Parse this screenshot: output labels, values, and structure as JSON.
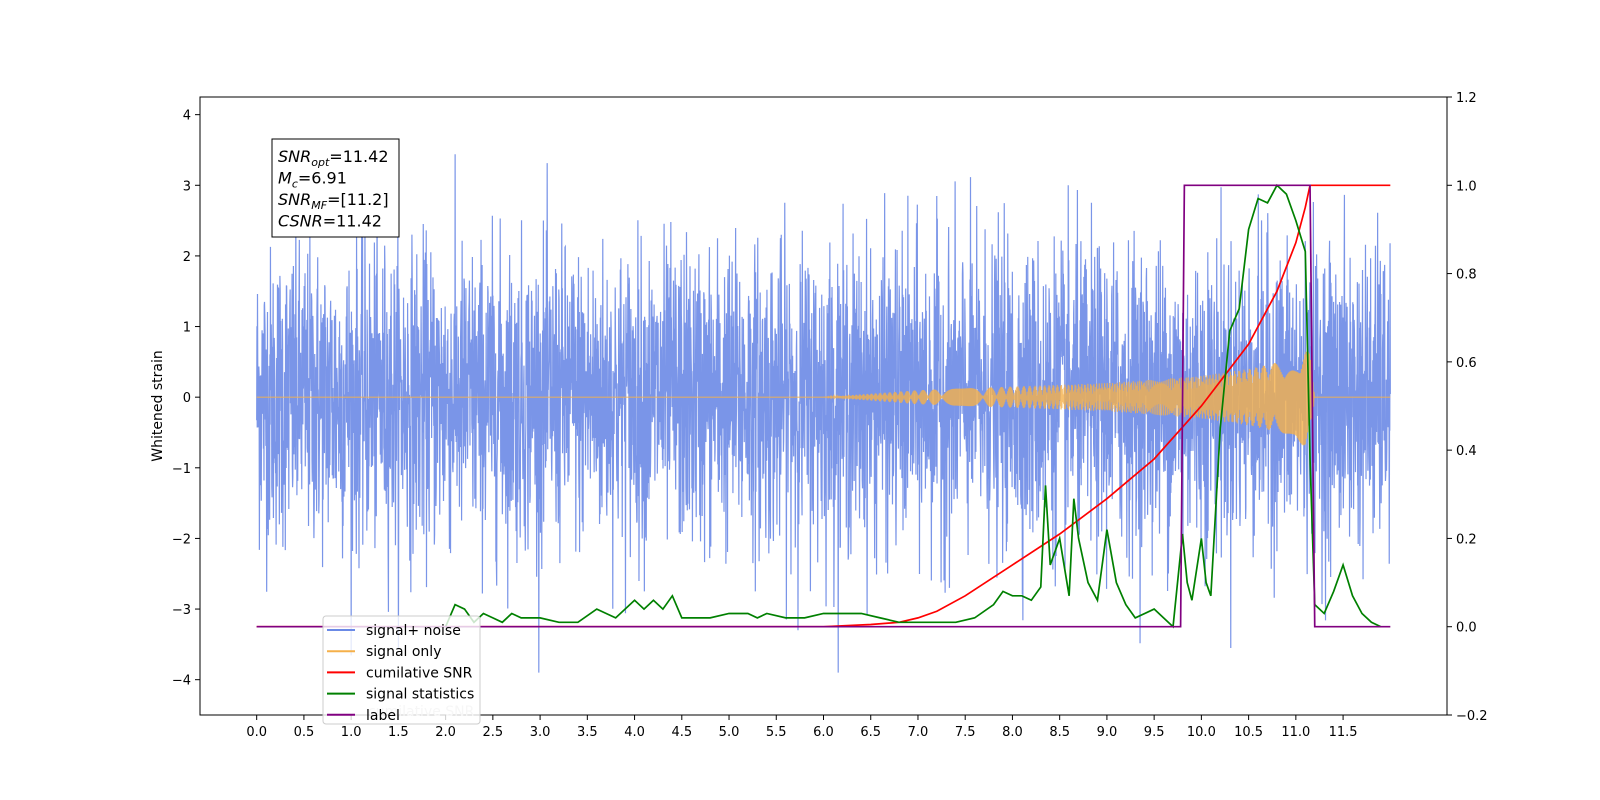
{
  "chart_data": {
    "type": "line",
    "ylabel": "Whitened strain",
    "xlim": [
      -0.6,
      12.6
    ],
    "ylim": [
      -4.5,
      4.25
    ],
    "ylim_right": [
      -0.2,
      1.2
    ],
    "x_ticks": [
      "0.0",
      "0.5",
      "1.0",
      "1.5",
      "2.0",
      "2.5",
      "3.0",
      "3.5",
      "4.0",
      "4.5",
      "5.0",
      "5.5",
      "6.0",
      "6.5",
      "7.0",
      "7.5",
      "8.0",
      "8.5",
      "9.0",
      "9.5",
      "10.0",
      "10.5",
      "11.0",
      "11.5"
    ],
    "x_tick_values": [
      0,
      0.5,
      1,
      1.5,
      2,
      2.5,
      3,
      3.5,
      4,
      4.5,
      5,
      5.5,
      6,
      6.5,
      7,
      7.5,
      8,
      8.5,
      9,
      9.5,
      10,
      10.5,
      11,
      11.5
    ],
    "y_ticks": [
      "−4",
      "−3",
      "−2",
      "−1",
      "0",
      "1",
      "2",
      "3",
      "4"
    ],
    "y_tick_values": [
      -4,
      -3,
      -2,
      -1,
      0,
      1,
      2,
      3,
      4
    ],
    "y_right_ticks": [
      "−0.2",
      "0.0",
      "0.2",
      "0.4",
      "0.6",
      "0.8",
      "1.0",
      "1.2"
    ],
    "y_right_tick_values": [
      -0.2,
      0,
      0.2,
      0.4,
      0.6,
      0.8,
      1.0,
      1.2
    ],
    "annotation": {
      "lines": [
        {
          "base": "SNR",
          "sub": "opt",
          "value": "=11.42"
        },
        {
          "base": "M",
          "sub": "c",
          "value": "=6.91"
        },
        {
          "base": "SNR",
          "sub": "MF",
          "value": "=[11.2]"
        },
        {
          "base": "CSNR",
          "sub": "",
          "value": "=11.42"
        }
      ]
    },
    "legend": {
      "placement": "lower-left",
      "entries": [
        {
          "label": "signal+ noise",
          "color": "#6b8ae6"
        },
        {
          "label": "signal only",
          "color": "#f5b04a"
        },
        {
          "label": "cumilative SNR",
          "color": "#ff0000"
        },
        {
          "label": "signal statistics",
          "color": "#008000"
        },
        {
          "label": "label",
          "color": "#800080"
        }
      ],
      "hidden_text": "cumilative SNR"
    },
    "series": [
      {
        "name": "signal+ noise",
        "axis": "left",
        "color": "#6b8ae6",
        "kind": "noise",
        "x_range": [
          0.0,
          12.0
        ],
        "envelope": {
          "typical": 2.3,
          "extreme": 3.9
        }
      },
      {
        "name": "signal only",
        "axis": "left",
        "color": "#f5b04a",
        "kind": "chirp",
        "x_range": [
          0.0,
          12.0
        ],
        "amplitude_points": {
          "x": [
            0,
            6.0,
            7.0,
            8.0,
            9.0,
            10.0,
            10.5,
            11.0,
            11.1,
            11.15,
            11.2,
            12.0
          ],
          "y": [
            0,
            0.0,
            0.1,
            0.15,
            0.2,
            0.3,
            0.4,
            0.55,
            0.75,
            0.6,
            0,
            0
          ]
        }
      },
      {
        "name": "cumilative SNR",
        "axis": "right",
        "color": "#ff0000",
        "x": [
          0,
          6.0,
          6.5,
          6.8,
          7.0,
          7.2,
          7.5,
          8.0,
          8.5,
          9.0,
          9.5,
          10.0,
          10.5,
          10.8,
          11.0,
          11.1,
          11.15,
          12.0
        ],
        "y": [
          0,
          0,
          0.005,
          0.01,
          0.02,
          0.035,
          0.07,
          0.14,
          0.21,
          0.29,
          0.38,
          0.5,
          0.64,
          0.76,
          0.87,
          0.95,
          1.0,
          1.0
        ]
      },
      {
        "name": "signal statistics",
        "axis": "right",
        "color": "#008000",
        "x": [
          2.0,
          2.1,
          2.2,
          2.3,
          2.4,
          2.5,
          2.6,
          2.7,
          2.8,
          3.0,
          3.2,
          3.4,
          3.6,
          3.7,
          3.8,
          4.0,
          4.1,
          4.2,
          4.3,
          4.4,
          4.5,
          4.6,
          4.8,
          5.0,
          5.2,
          5.3,
          5.4,
          5.6,
          5.8,
          6.0,
          6.2,
          6.4,
          6.6,
          6.8,
          7.0,
          7.2,
          7.4,
          7.6,
          7.8,
          7.9,
          8.0,
          8.1,
          8.2,
          8.3,
          8.35,
          8.4,
          8.5,
          8.6,
          8.65,
          8.7,
          8.8,
          8.9,
          9.0,
          9.1,
          9.2,
          9.3,
          9.5,
          9.6,
          9.7,
          9.8,
          9.85,
          9.9,
          10.0,
          10.05,
          10.1,
          10.2,
          10.3,
          10.4,
          10.5,
          10.6,
          10.7,
          10.8,
          10.9,
          11.0,
          11.1,
          11.15,
          11.2,
          11.3,
          11.4,
          11.5,
          11.6,
          11.7,
          11.8,
          11.9
        ],
        "y": [
          0.0,
          0.05,
          0.04,
          0.01,
          0.03,
          0.02,
          0.01,
          0.03,
          0.02,
          0.02,
          0.01,
          0.01,
          0.04,
          0.03,
          0.02,
          0.06,
          0.04,
          0.06,
          0.04,
          0.07,
          0.02,
          0.02,
          0.02,
          0.03,
          0.03,
          0.02,
          0.03,
          0.02,
          0.02,
          0.03,
          0.03,
          0.03,
          0.02,
          0.01,
          0.01,
          0.01,
          0.01,
          0.02,
          0.05,
          0.08,
          0.07,
          0.07,
          0.06,
          0.09,
          0.32,
          0.14,
          0.2,
          0.07,
          0.29,
          0.2,
          0.1,
          0.06,
          0.22,
          0.1,
          0.05,
          0.02,
          0.04,
          0.02,
          0.0,
          0.21,
          0.1,
          0.06,
          0.2,
          0.1,
          0.07,
          0.45,
          0.67,
          0.72,
          0.9,
          0.97,
          0.96,
          1.0,
          0.98,
          0.92,
          0.85,
          0.38,
          0.05,
          0.03,
          0.08,
          0.14,
          0.07,
          0.03,
          0.01,
          0.0
        ]
      },
      {
        "name": "label",
        "axis": "right",
        "color": "#800080",
        "x": [
          0,
          9.78,
          9.82,
          11.15,
          11.2,
          12.0
        ],
        "y": [
          0,
          0,
          1,
          1,
          0,
          0
        ]
      }
    ]
  }
}
